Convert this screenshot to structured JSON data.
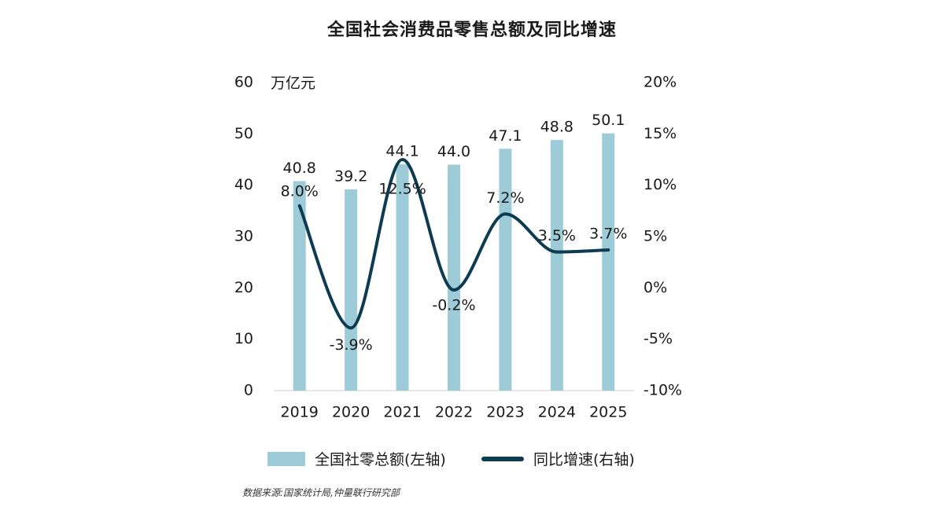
{
  "title": "全国社会消费品零售总额及同比增速",
  "unit_label": "万亿元",
  "source": "数据来源:国家统计局,仲量联行研究部",
  "legend": {
    "bar_label": "全国社零总额(左轴)",
    "line_label": "同比增速(右轴)"
  },
  "colors": {
    "bar": "#9ecbd8",
    "line": "#0d3b52",
    "axis": "#cccccc",
    "text": "#1a1a1a"
  },
  "chart_data": {
    "type": "bar+line",
    "categories": [
      "2019",
      "2020",
      "2021",
      "2022",
      "2023",
      "2024",
      "2025"
    ],
    "series": [
      {
        "name": "全国社零总额(左轴)",
        "type": "bar",
        "axis": "left",
        "values": [
          40.8,
          39.2,
          44.1,
          44.0,
          47.1,
          48.8,
          50.1
        ],
        "labels": [
          "40.8",
          "39.2",
          "44.1",
          "44.0",
          "47.1",
          "48.8",
          "50.1"
        ]
      },
      {
        "name": "同比增速(右轴)",
        "type": "line",
        "axis": "right",
        "values": [
          8.0,
          -3.9,
          12.5,
          -0.2,
          7.2,
          3.5,
          3.7
        ],
        "labels": [
          "8.0%",
          "-3.9%",
          "12.5%",
          "-0.2%",
          "7.2%",
          "3.5%",
          "3.7%"
        ]
      }
    ],
    "y_left": {
      "min": 0,
      "max": 60,
      "ticks": [
        "0",
        "10",
        "20",
        "30",
        "40",
        "50",
        "60"
      ]
    },
    "y_right": {
      "min": -10,
      "max": 20,
      "ticks": [
        "-10%",
        "-5%",
        "0%",
        "5%",
        "10%",
        "15%",
        "20%"
      ]
    },
    "grid": false,
    "legend_position": "bottom"
  }
}
